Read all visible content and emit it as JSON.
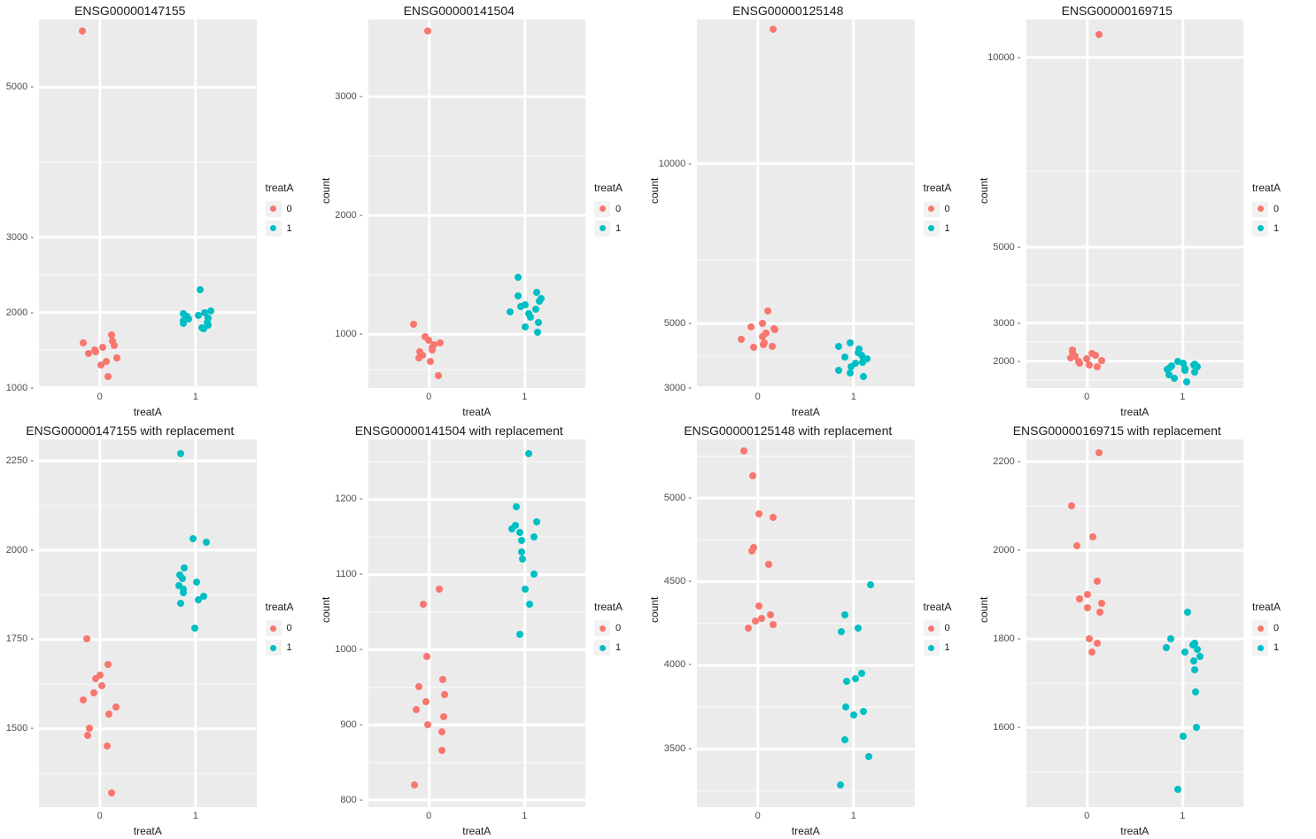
{
  "global": {
    "background_color": "#ffffff",
    "panel_bg": "#ebebeb",
    "grid_major_color": "#ffffff",
    "grid_minor_color": "#f4f4f4",
    "tick_color": "#333333",
    "text_color": "#1a1a1a",
    "xlabel": "treatA",
    "ylabel": "count",
    "x_categories": [
      "0",
      "1"
    ],
    "colors": {
      "0": "#f8766d",
      "1": "#00bfc4"
    },
    "point_radius": 4,
    "point_alpha": 1.0,
    "jitter_width": 0.18,
    "legend": {
      "title": "treatA",
      "items": [
        "0",
        "1"
      ]
    },
    "title_fontsize": 14,
    "axis_fontsize": 11,
    "label_fontsize": 12
  },
  "panels": [
    {
      "title": "ENSG00000147155",
      "ylim": [
        1000,
        5900
      ],
      "yticks": [
        1000,
        2000,
        3000,
        5000
      ],
      "yminor": [
        1500,
        2500,
        4000
      ],
      "series": [
        {
          "group": "0",
          "values": [
            5750,
            1700,
            1620,
            1600,
            1560,
            1540,
            1500,
            1480,
            1450,
            1400,
            1350,
            1300,
            1150
          ]
        },
        {
          "group": "1",
          "values": [
            2300,
            2020,
            2000,
            1980,
            1960,
            1950,
            1920,
            1910,
            1890,
            1870,
            1850,
            1830,
            1800,
            1780
          ]
        }
      ]
    },
    {
      "title": "ENSG00000141504",
      "ylim": [
        550,
        3650
      ],
      "yticks": [
        1000,
        2000,
        3000
      ],
      "yminor": [
        700,
        1500,
        2500
      ],
      "series": [
        {
          "group": "0",
          "values": [
            3550,
            1080,
            980,
            950,
            930,
            910,
            890,
            870,
            850,
            820,
            800,
            770,
            650
          ]
        },
        {
          "group": "1",
          "values": [
            1480,
            1350,
            1320,
            1300,
            1280,
            1250,
            1230,
            1210,
            1190,
            1170,
            1140,
            1100,
            1060,
            1020
          ]
        }
      ]
    },
    {
      "title": "ENSG00000125148",
      "ylim": [
        3000,
        14500
      ],
      "yticks": [
        3000,
        5000,
        10000
      ],
      "yminor": [
        4000,
        7000
      ],
      "series": [
        {
          "group": "0",
          "values": [
            14200,
            5400,
            5000,
            4900,
            4850,
            4800,
            4700,
            4600,
            4500,
            4400,
            4350,
            4300,
            4250
          ]
        },
        {
          "group": "1",
          "values": [
            4400,
            4300,
            4200,
            4100,
            4000,
            3950,
            3900,
            3850,
            3800,
            3750,
            3650,
            3550,
            3450,
            3350
          ]
        }
      ]
    },
    {
      "title": "ENSG00000169715",
      "ylim": [
        1300,
        11000
      ],
      "yticks": [
        2000,
        3000,
        5000,
        10000
      ],
      "yminor": [
        1500,
        2500,
        4000,
        7000
      ],
      "series": [
        {
          "group": "0",
          "values": [
            10600,
            2300,
            2250,
            2200,
            2150,
            2120,
            2080,
            2050,
            2020,
            1980,
            1950,
            1900,
            1850
          ]
        },
        {
          "group": "1",
          "values": [
            2000,
            1950,
            1920,
            1900,
            1880,
            1850,
            1820,
            1800,
            1780,
            1760,
            1700,
            1650,
            1550,
            1450
          ]
        }
      ]
    },
    {
      "title": "ENSG00000147155 with replacement",
      "ylim": [
        1280,
        2310
      ],
      "yticks": [
        1500,
        1750,
        2000,
        2250
      ],
      "yminor": [
        1375,
        1625,
        1875,
        2125
      ],
      "series": [
        {
          "group": "0",
          "values": [
            1750,
            1680,
            1650,
            1640,
            1620,
            1600,
            1580,
            1560,
            1540,
            1500,
            1480,
            1450,
            1320
          ]
        },
        {
          "group": "1",
          "values": [
            2270,
            2030,
            2020,
            1950,
            1930,
            1920,
            1910,
            1900,
            1890,
            1880,
            1870,
            1860,
            1850,
            1780
          ]
        }
      ]
    },
    {
      "title": "ENSG00000141504 with replacement",
      "ylim": [
        790,
        1280
      ],
      "yticks": [
        800,
        900,
        1000,
        1100,
        1200
      ],
      "yminor": [
        850,
        950,
        1050,
        1150,
        1250
      ],
      "series": [
        {
          "group": "0",
          "values": [
            1080,
            1060,
            990,
            960,
            950,
            940,
            930,
            920,
            910,
            900,
            890,
            865,
            820
          ]
        },
        {
          "group": "1",
          "values": [
            1260,
            1190,
            1170,
            1165,
            1160,
            1155,
            1150,
            1145,
            1130,
            1120,
            1100,
            1080,
            1060,
            1020
          ]
        }
      ]
    },
    {
      "title": "ENSG00000125148 with replacement",
      "ylim": [
        3150,
        5350
      ],
      "yticks": [
        3500,
        4000,
        4500,
        5000
      ],
      "yminor": [
        3250,
        3750,
        4250,
        4750,
        5250
      ],
      "series": [
        {
          "group": "0",
          "values": [
            5280,
            5130,
            4900,
            4880,
            4700,
            4680,
            4600,
            4350,
            4300,
            4280,
            4260,
            4240,
            4220
          ]
        },
        {
          "group": "1",
          "values": [
            4480,
            4300,
            4220,
            4200,
            3950,
            3920,
            3900,
            3750,
            3720,
            3700,
            3550,
            3450,
            3280
          ]
        }
      ]
    },
    {
      "title": "ENSG00000169715 with replacement",
      "ylim": [
        1420,
        2250
      ],
      "yticks": [
        1600,
        1800,
        2000,
        2200
      ],
      "yminor": [
        1500,
        1700,
        1900,
        2100
      ],
      "series": [
        {
          "group": "0",
          "values": [
            2220,
            2100,
            2030,
            2010,
            1930,
            1900,
            1890,
            1880,
            1870,
            1860,
            1800,
            1790,
            1770
          ]
        },
        {
          "group": "1",
          "values": [
            1860,
            1800,
            1790,
            1785,
            1780,
            1775,
            1770,
            1760,
            1750,
            1730,
            1680,
            1600,
            1580,
            1460
          ]
        }
      ]
    }
  ]
}
